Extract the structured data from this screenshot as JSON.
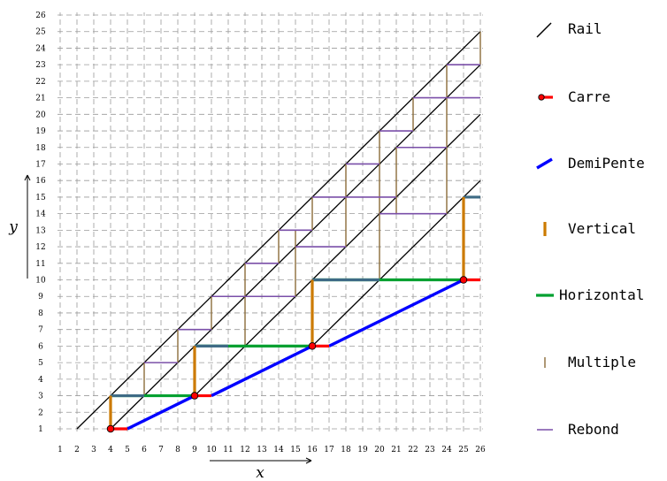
{
  "chart_data": {
    "type": "diagram",
    "xlabel": "x",
    "ylabel": "y",
    "x_ticks": [
      1,
      2,
      3,
      4,
      5,
      6,
      7,
      8,
      9,
      10,
      11,
      12,
      13,
      14,
      15,
      16,
      17,
      18,
      19,
      20,
      21,
      22,
      23,
      24,
      25,
      26
    ],
    "y_ticks": [
      1,
      2,
      3,
      4,
      5,
      6,
      7,
      8,
      9,
      10,
      11,
      12,
      13,
      14,
      15,
      16,
      17,
      18,
      19,
      20,
      21,
      22,
      23,
      24,
      25,
      26
    ],
    "xlim": [
      1,
      26
    ],
    "ylim": [
      1,
      26
    ],
    "grid": "dashed",
    "colors": {
      "rail": "#000000",
      "carre": "#ff0000",
      "demipente": "#0000ff",
      "vertical": "#cc7a00",
      "horizontal": "#00a030",
      "multiple": "#8b6d3a",
      "rebond": "#7a4fa8",
      "overlap": "#3e6b85"
    },
    "legend": [
      {
        "key": "rail",
        "label": "Rail",
        "icon": "diagonal-line-icon"
      },
      {
        "key": "carre",
        "label": "Carre",
        "icon": "red-dot-line-icon"
      },
      {
        "key": "demipente",
        "label": "DemiPente",
        "icon": "blue-slash-icon"
      },
      {
        "key": "vertical",
        "label": "Vertical",
        "icon": "orange-bar-icon"
      },
      {
        "key": "horizontal",
        "label": "Horizontal",
        "icon": "green-bar-icon"
      },
      {
        "key": "multiple",
        "label": "Multiple",
        "icon": "brown-tick-icon"
      },
      {
        "key": "rebond",
        "label": "Rebond",
        "icon": "purple-dash-icon"
      }
    ],
    "rails": [
      {
        "from": [
          2,
          1
        ],
        "to": [
          26,
          25
        ]
      },
      {
        "from": [
          4,
          1
        ],
        "to": [
          26,
          23
        ]
      },
      {
        "from": [
          9,
          3
        ],
        "to": [
          26,
          20
        ]
      },
      {
        "from": [
          16,
          6
        ],
        "to": [
          26,
          16
        ]
      }
    ],
    "carre_points": [
      [
        4,
        1
      ],
      [
        9,
        3
      ],
      [
        16,
        6
      ],
      [
        25,
        10
      ]
    ],
    "carre_segments": [
      {
        "from": [
          4,
          1
        ],
        "to": [
          5,
          1
        ]
      },
      {
        "from": [
          9,
          3
        ],
        "to": [
          10,
          3
        ]
      },
      {
        "from": [
          16,
          6
        ],
        "to": [
          17,
          6
        ]
      },
      {
        "from": [
          25,
          10
        ],
        "to": [
          26,
          10
        ]
      }
    ],
    "demipente_segments": [
      {
        "from": [
          5,
          1
        ],
        "to": [
          9,
          3
        ]
      },
      {
        "from": [
          10,
          3
        ],
        "to": [
          16,
          6
        ]
      },
      {
        "from": [
          17,
          6
        ],
        "to": [
          25,
          10
        ]
      }
    ],
    "vertical_segments": [
      {
        "from": [
          4,
          1
        ],
        "to": [
          4,
          3
        ]
      },
      {
        "from": [
          9,
          3
        ],
        "to": [
          9,
          6
        ]
      },
      {
        "from": [
          16,
          6
        ],
        "to": [
          16,
          10
        ]
      },
      {
        "from": [
          25,
          10
        ],
        "to": [
          25,
          15
        ]
      }
    ],
    "horizontal_segments": [
      {
        "from": [
          4,
          3
        ],
        "to": [
          9,
          3
        ]
      },
      {
        "from": [
          9,
          6
        ],
        "to": [
          16,
          6
        ]
      },
      {
        "from": [
          16,
          10
        ],
        "to": [
          25,
          10
        ]
      }
    ],
    "overlap_segments": [
      {
        "from": [
          4,
          3
        ],
        "to": [
          6,
          3
        ]
      },
      {
        "from": [
          9,
          6
        ],
        "to": [
          11,
          6
        ]
      },
      {
        "from": [
          16,
          10
        ],
        "to": [
          20,
          10
        ]
      },
      {
        "from": [
          25,
          15
        ],
        "to": [
          26,
          15
        ]
      }
    ],
    "multiple_segments": [
      {
        "from": [
          6,
          3
        ],
        "to": [
          6,
          5
        ]
      },
      {
        "from": [
          8,
          5
        ],
        "to": [
          8,
          7
        ]
      },
      {
        "from": [
          10,
          7
        ],
        "to": [
          10,
          9
        ]
      },
      {
        "from": [
          12,
          6
        ],
        "to": [
          12,
          11
        ]
      },
      {
        "from": [
          14,
          11
        ],
        "to": [
          14,
          13
        ]
      },
      {
        "from": [
          15,
          9
        ],
        "to": [
          15,
          13
        ]
      },
      {
        "from": [
          16,
          13
        ],
        "to": [
          16,
          15
        ]
      },
      {
        "from": [
          18,
          12
        ],
        "to": [
          18,
          17
        ]
      },
      {
        "from": [
          20,
          10
        ],
        "to": [
          20,
          19
        ]
      },
      {
        "from": [
          21,
          14
        ],
        "to": [
          21,
          18
        ]
      },
      {
        "from": [
          22,
          19
        ],
        "to": [
          22,
          21
        ]
      },
      {
        "from": [
          24,
          14
        ],
        "to": [
          24,
          23
        ]
      },
      {
        "from": [
          26,
          23
        ],
        "to": [
          26,
          25
        ]
      }
    ],
    "rebond_segments": [
      {
        "from": [
          6,
          5
        ],
        "to": [
          8,
          5
        ]
      },
      {
        "from": [
          8,
          7
        ],
        "to": [
          10,
          7
        ]
      },
      {
        "from": [
          10,
          9
        ],
        "to": [
          12,
          9
        ]
      },
      {
        "from": [
          12,
          11
        ],
        "to": [
          14,
          11
        ]
      },
      {
        "from": [
          12,
          9
        ],
        "to": [
          15,
          9
        ]
      },
      {
        "from": [
          14,
          13
        ],
        "to": [
          16,
          13
        ]
      },
      {
        "from": [
          15,
          12
        ],
        "to": [
          18,
          12
        ]
      },
      {
        "from": [
          16,
          15
        ],
        "to": [
          21,
          15
        ]
      },
      {
        "from": [
          18,
          17
        ],
        "to": [
          20,
          17
        ]
      },
      {
        "from": [
          20,
          14
        ],
        "to": [
          24,
          14
        ]
      },
      {
        "from": [
          20,
          19
        ],
        "to": [
          22,
          19
        ]
      },
      {
        "from": [
          21,
          18
        ],
        "to": [
          24,
          18
        ]
      },
      {
        "from": [
          22,
          21
        ],
        "to": [
          26,
          21
        ]
      },
      {
        "from": [
          24,
          23
        ],
        "to": [
          26,
          23
        ]
      }
    ]
  }
}
